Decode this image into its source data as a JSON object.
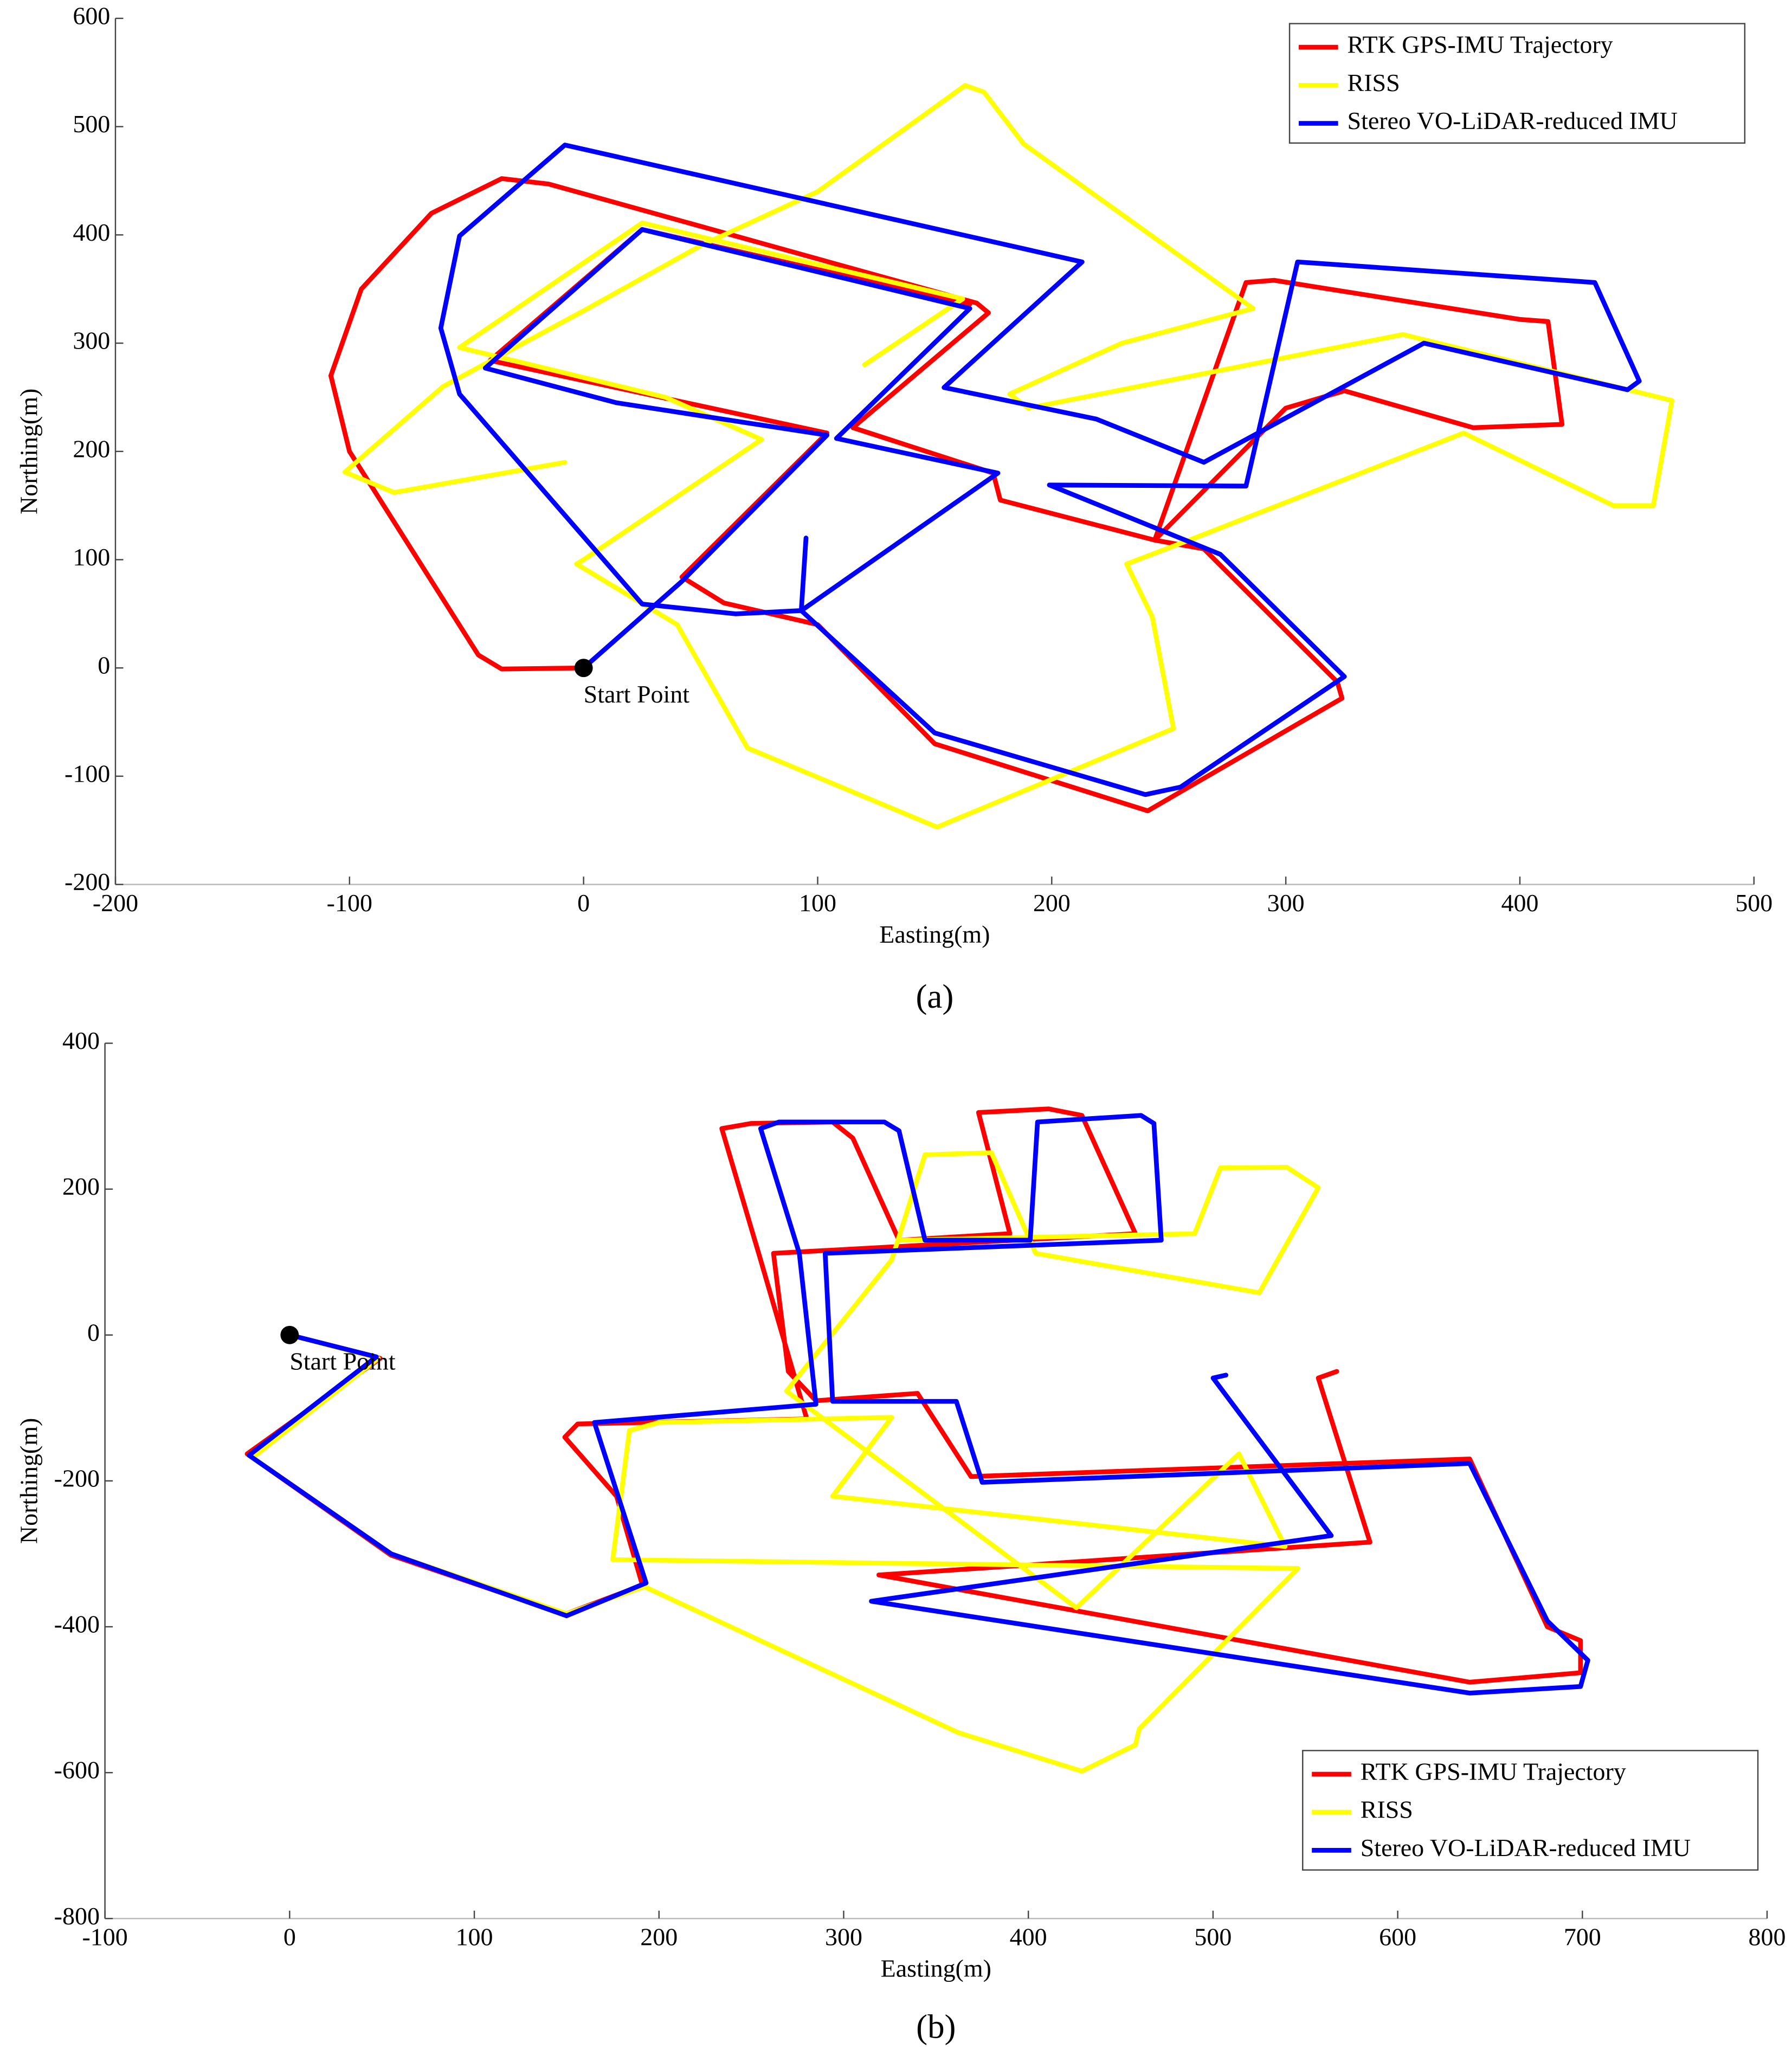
{
  "chart_data": [
    {
      "type": "line",
      "caption": "(a)",
      "x_label": "Easting(m)",
      "y_label": "Northing(m)",
      "xlim": [
        -200,
        500
      ],
      "ylim": [
        -200,
        600
      ],
      "xticks": [
        -200,
        -100,
        0,
        100,
        200,
        300,
        400,
        500
      ],
      "yticks": [
        -200,
        -100,
        0,
        100,
        200,
        300,
        400,
        500,
        600
      ],
      "legend": "upper right",
      "start": {
        "label": "Start Point",
        "x": 0,
        "y": 0
      },
      "series": [
        {
          "name": "RTK GPS-IMU Trajectory",
          "color": "#ff0000",
          "x": [
            0,
            -35,
            -45,
            -100,
            -108,
            -95,
            -65,
            -35,
            -15,
            168,
            173,
            115,
            175,
            178,
            244,
            283,
            295,
            400,
            412,
            418,
            380,
            325,
            300,
            244,
            265,
            322,
            324,
            241,
            150,
            100,
            60,
            42,
            104,
            -40,
            25,
            165
          ],
          "values": [
            0,
            -1,
            12,
            200,
            270,
            350,
            420,
            452,
            447,
            337,
            328,
            222,
            180,
            155,
            118,
            356,
            358,
            322,
            320,
            225,
            222,
            256,
            240,
            118,
            110,
            -13,
            -28,
            -132,
            -70,
            40,
            60,
            84,
            217,
            284,
            405,
            336
          ]
        },
        {
          "name": "RISS",
          "color": "#ffff00",
          "x": [
            -8,
            -81,
            -102,
            -60,
            0,
            50,
            100,
            163,
            171,
            188,
            286,
            230,
            182,
            190,
            350,
            465,
            457,
            440,
            376,
            261,
            232,
            243,
            252,
            151,
            70,
            40,
            -3,
            0,
            76,
            35,
            -53,
            25,
            162,
            120
          ],
          "values": [
            190,
            162,
            181,
            260,
            330,
            390,
            440,
            538,
            532,
            484,
            332,
            300,
            253,
            240,
            308,
            247,
            150,
            150,
            217,
            120,
            96,
            47,
            -56,
            -147,
            -74,
            40,
            96,
            100,
            211,
            250,
            296,
            411,
            341,
            280
          ]
        },
        {
          "name": "Stereo VO-LiDAR-reduced IMU",
          "color": "#0000ff",
          "x": [
            0,
            42,
            104,
            14,
            -42,
            25,
            165,
            108,
            177,
            93,
            150,
            240,
            255,
            325,
            272,
            199,
            283,
            305,
            432,
            451,
            446,
            359,
            265,
            219,
            154,
            213,
            -8,
            -53,
            -61,
            -53,
            25,
            65,
            93,
            95
          ],
          "values": [
            0,
            80,
            215,
            245,
            277,
            405,
            332,
            212,
            180,
            53,
            -60,
            -117,
            -110,
            -8,
            105,
            169,
            168,
            375,
            356,
            265,
            257,
            300,
            190,
            230,
            259,
            375,
            483,
            399,
            314,
            253,
            59,
            50,
            53,
            120
          ]
        }
      ]
    },
    {
      "type": "line",
      "caption": "(b)",
      "x_label": "Easting(m)",
      "y_label": "Northing(m)",
      "xlim": [
        -100,
        800
      ],
      "ylim": [
        -800,
        400
      ],
      "xticks": [
        -100,
        0,
        100,
        200,
        300,
        400,
        500,
        600,
        700,
        800
      ],
      "yticks": [
        -800,
        -600,
        -400,
        -200,
        0,
        200,
        400
      ],
      "legend": "lower right",
      "start": {
        "label": "Start Point",
        "x": 0,
        "y": 0
      },
      "series": [
        {
          "name": "RTK GPS-IMU Trajectory",
          "color": "#ff0000",
          "x": [
            0,
            49,
            -23,
            55,
            149,
            191,
            177,
            149,
            156,
            280,
            255,
            234,
            250,
            294,
            305,
            330,
            390,
            373,
            411,
            429,
            458,
            262,
            270,
            285,
            340,
            369,
            639,
            681,
            699,
            699,
            639,
            319,
            585,
            557,
            567
          ],
          "values": [
            0,
            -32,
            -163,
            -302,
            -383,
            -343,
            -221,
            -140,
            -122,
            -115,
            103,
            283,
            290,
            292,
            270,
            130,
            139,
            305,
            310,
            301,
            139,
            112,
            -50,
            -90,
            -80,
            -194,
            -170,
            -400,
            -419,
            -463,
            -476,
            -329,
            -284,
            -59,
            -50
          ]
        },
        {
          "name": "RISS",
          "color": "#ffff00",
          "x": [
            0,
            48,
            -20,
            55,
            150,
            192,
            362,
            429,
            458,
            460,
            546,
            175,
            184,
            200,
            326,
            294,
            539,
            514,
            426,
            269,
            326,
            344,
            380,
            404,
            525,
            557,
            540,
            504,
            490,
            330
          ],
          "values": [
            0,
            -32,
            -168,
            -300,
            -382,
            -345,
            -545,
            -598,
            -562,
            -540,
            -320,
            -308,
            -131,
            -120,
            -113,
            -221,
            -290,
            -163,
            -374,
            -77,
            103,
            247,
            250,
            112,
            58,
            202,
            230,
            229,
            139,
            130
          ]
        },
        {
          "name": "Stereo VO-LiDAR-reduced IMU",
          "color": "#0000ff",
          "x": [
            0,
            47,
            -22,
            55,
            150,
            193,
            165,
            285,
            276,
            255,
            265,
            322,
            330,
            344,
            401,
            405,
            461,
            468,
            472,
            290,
            294,
            361,
            375,
            639,
            681,
            703,
            699,
            639,
            315,
            564,
            500,
            507
          ],
          "values": [
            0,
            -30,
            -165,
            -300,
            -385,
            -340,
            -120,
            -95,
            112,
            283,
            292,
            292,
            280,
            130,
            130,
            292,
            301,
            290,
            130,
            112,
            -91,
            -91,
            -202,
            -176,
            -392,
            -446,
            -482,
            -491,
            -365,
            -275,
            -59,
            -55
          ]
        }
      ]
    }
  ]
}
